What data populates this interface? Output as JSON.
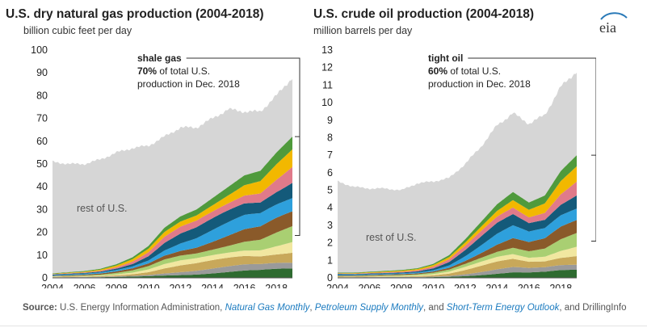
{
  "logo_text": "eia",
  "source": {
    "label": "Source:",
    "text1": " U.S. Energy Information Administration, ",
    "link1": "Natural Gas Monthly",
    "sep1": ", ",
    "link2": "Petroleum Supply Monthly",
    "sep2": ", and ",
    "link3": "Short-Term Energy Outlook",
    "text2": ", and DrillingInfo"
  },
  "colors": {
    "rest": "#d6d6d6",
    "layers": [
      "#2e6b30",
      "#9a9a9a",
      "#c8a85a",
      "#f1e7a0",
      "#a9cf72",
      "#8a5a2a",
      "#2ea0dc",
      "#145a7a",
      "#e07a8a",
      "#f2b800",
      "#4f9a3c"
    ]
  },
  "chart_data": [
    {
      "type": "area",
      "title": "U.S. dry natural gas production (2004-2018)",
      "subtitle": "billion cubic feet per day",
      "xlim": [
        2004,
        2019
      ],
      "ylim": [
        0,
        100
      ],
      "x_ticks": [
        "2004",
        "2006",
        "2008",
        "2010",
        "2012",
        "2014",
        "2016",
        "2018"
      ],
      "y_ticks": [
        "0",
        "10",
        "20",
        "30",
        "40",
        "50",
        "60",
        "70",
        "80",
        "90",
        "100"
      ],
      "x": [
        2004,
        2005,
        2006,
        2007,
        2008,
        2009,
        2010,
        2011,
        2012,
        2013,
        2014,
        2015,
        2016,
        2017,
        2018,
        2019
      ],
      "total": [
        51,
        50,
        50,
        52,
        55,
        57,
        58,
        62,
        66,
        66,
        70,
        74,
        73,
        73,
        80,
        88
      ],
      "subtotal_series": {
        "name": "shale gas",
        "values": [
          2,
          2.5,
          3,
          4,
          6,
          9,
          14,
          22,
          27,
          30,
          35,
          40,
          45,
          47,
          55,
          62
        ]
      },
      "annotation": {
        "label": "shale gas",
        "share": "70%",
        "text1": " of total U.S.",
        "text2": "production in Dec. 2018"
      },
      "rest_label": "rest of U.S."
    },
    {
      "type": "area",
      "title": "U.S. crude oil production (2004-2018)",
      "subtitle": "million barrels per day",
      "xlim": [
        2004,
        2019
      ],
      "ylim": [
        0,
        13
      ],
      "x_ticks": [
        "2004",
        "2006",
        "2008",
        "2010",
        "2012",
        "2014",
        "2016",
        "2018"
      ],
      "y_ticks": [
        "0",
        "1",
        "2",
        "3",
        "4",
        "5",
        "6",
        "7",
        "8",
        "9",
        "10",
        "11",
        "12",
        "13"
      ],
      "x": [
        2004,
        2005,
        2006,
        2007,
        2008,
        2009,
        2010,
        2011,
        2012,
        2013,
        2014,
        2015,
        2016,
        2017,
        2018,
        2019
      ],
      "total": [
        5.5,
        5.2,
        5.1,
        5.1,
        5.0,
        5.4,
        5.5,
        5.7,
        6.5,
        7.5,
        8.7,
        9.4,
        8.8,
        9.3,
        10.9,
        11.8
      ],
      "subtotal_series": {
        "name": "tight oil",
        "values": [
          0.3,
          0.3,
          0.35,
          0.4,
          0.45,
          0.55,
          0.8,
          1.3,
          2.2,
          3.2,
          4.2,
          4.9,
          4.3,
          4.7,
          6.1,
          7.0
        ]
      },
      "annotation": {
        "label": "tight oil",
        "share": "60%",
        "text1": " of total U.S.",
        "text2": "production in Dec. 2018"
      },
      "rest_label": "rest of U.S."
    }
  ]
}
